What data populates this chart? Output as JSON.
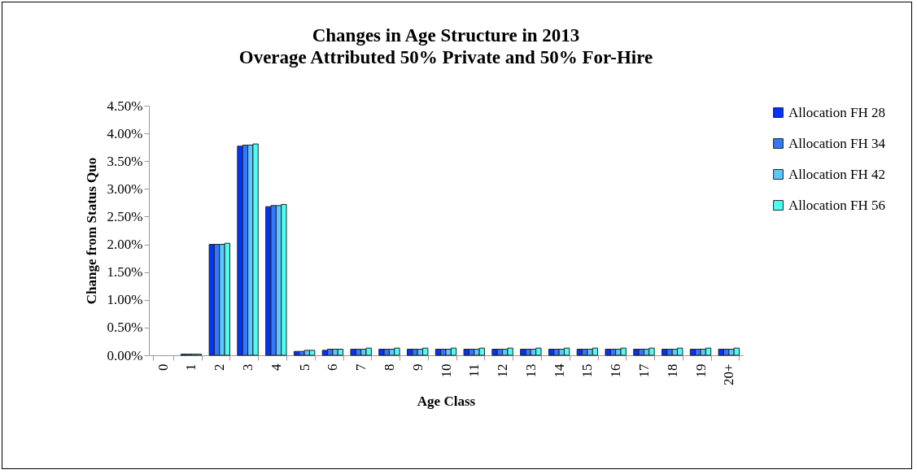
{
  "chart_data": {
    "type": "bar",
    "title": "Changes in Age Structure in 2013",
    "subtitle": "Overage Attributed 50% Private and 50% For-Hire",
    "xlabel": "Age Class",
    "ylabel": "Change from Status Quo",
    "categories": [
      "0",
      "1",
      "2",
      "3",
      "4",
      "5",
      "6",
      "7",
      "8",
      "9",
      "10",
      "11",
      "12",
      "13",
      "14",
      "15",
      "16",
      "17",
      "18",
      "19",
      "20+"
    ],
    "series": [
      {
        "name": "Allocation FH 28",
        "color": "#0033ff",
        "values": [
          0,
          0.02,
          2.0,
          3.77,
          2.68,
          0.07,
          0.09,
          0.11,
          0.11,
          0.11,
          0.11,
          0.11,
          0.11,
          0.11,
          0.11,
          0.11,
          0.11,
          0.11,
          0.11,
          0.11,
          0.11
        ]
      },
      {
        "name": "Allocation FH 34",
        "color": "#3377ff",
        "values": [
          0,
          0.02,
          2.0,
          3.79,
          2.7,
          0.07,
          0.11,
          0.11,
          0.11,
          0.11,
          0.11,
          0.11,
          0.11,
          0.11,
          0.11,
          0.11,
          0.11,
          0.11,
          0.11,
          0.11,
          0.11
        ]
      },
      {
        "name": "Allocation FH 42",
        "color": "#5bc8ff",
        "values": [
          0,
          0.02,
          2.0,
          3.79,
          2.7,
          0.09,
          0.11,
          0.11,
          0.11,
          0.11,
          0.11,
          0.11,
          0.11,
          0.11,
          0.11,
          0.11,
          0.11,
          0.11,
          0.11,
          0.11,
          0.11
        ]
      },
      {
        "name": "Allocation FH 56",
        "color": "#4dfff0",
        "values": [
          0,
          0.02,
          2.02,
          3.81,
          2.72,
          0.09,
          0.11,
          0.13,
          0.13,
          0.13,
          0.13,
          0.13,
          0.13,
          0.13,
          0.13,
          0.13,
          0.13,
          0.13,
          0.13,
          0.13,
          0.13
        ]
      }
    ],
    "ylim": [
      0,
      4.5
    ],
    "yticks": [
      {
        "value": 0,
        "label": "0.00%"
      },
      {
        "value": 0.5,
        "label": "0.50%"
      },
      {
        "value": 1,
        "label": "1.00%"
      },
      {
        "value": 1.5,
        "label": "1.50%"
      },
      {
        "value": 2,
        "label": "2.00%"
      },
      {
        "value": 2.5,
        "label": "2.50%"
      },
      {
        "value": 3,
        "label": "3.00%"
      },
      {
        "value": 3.5,
        "label": "3.50%"
      },
      {
        "value": 4,
        "label": "4.00%"
      },
      {
        "value": 4.5,
        "label": "4.50%"
      }
    ],
    "legend": "right",
    "grid": false
  }
}
